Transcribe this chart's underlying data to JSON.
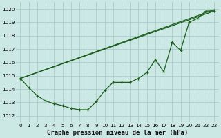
{
  "title": "Graphe pression niveau de la mer (hPa)",
  "background_color": "#cce8e4",
  "grid_color": "#aaccca",
  "line_color": "#1a5c1a",
  "xlim": [
    -0.5,
    23.5
  ],
  "ylim": [
    1011.5,
    1020.5
  ],
  "xticks": [
    0,
    1,
    2,
    3,
    4,
    5,
    6,
    7,
    8,
    9,
    10,
    11,
    12,
    13,
    14,
    15,
    16,
    17,
    18,
    19,
    20,
    21,
    22,
    23
  ],
  "yticks": [
    1012,
    1013,
    1014,
    1015,
    1016,
    1017,
    1018,
    1019,
    1020
  ],
  "series1_x": [
    0,
    1,
    2,
    3,
    4,
    5,
    6,
    7,
    8,
    9,
    10,
    11,
    12,
    13,
    14,
    15,
    16,
    17,
    18,
    19,
    20,
    21,
    22,
    23
  ],
  "series1_y": [
    1014.8,
    1014.1,
    1013.5,
    1013.1,
    1012.9,
    1012.75,
    1012.55,
    1012.45,
    1012.45,
    1013.05,
    1013.9,
    1014.5,
    1014.5,
    1014.5,
    1014.8,
    1015.25,
    1016.2,
    1015.3,
    1017.5,
    1016.9,
    1019.0,
    1019.3,
    1019.85,
    1019.85
  ],
  "series2_x": [
    0,
    23
  ],
  "series2_y": [
    1014.8,
    1019.85
  ],
  "series3_x": [
    0,
    23
  ],
  "series3_y": [
    1014.8,
    1019.95
  ]
}
